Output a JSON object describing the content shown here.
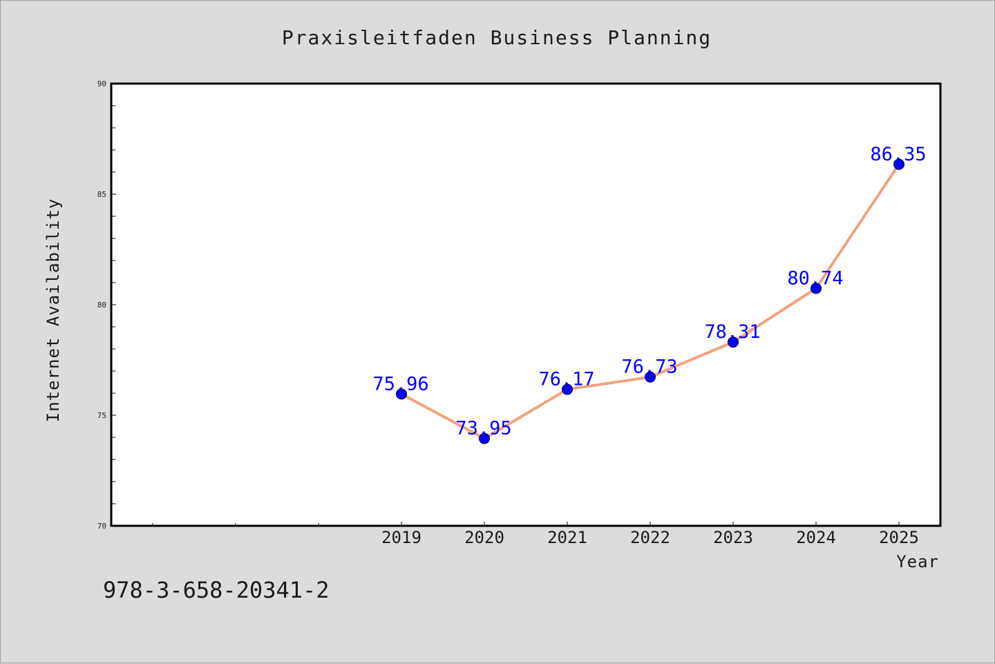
{
  "chart_data": {
    "type": "line",
    "title": "Praxisleitfaden Business Planning",
    "xlabel": "Year",
    "ylabel": "Internet Availability",
    "x": [
      2019,
      2020,
      2021,
      2022,
      2023,
      2024,
      2025
    ],
    "x_tick_labels": [
      "2019",
      "2020",
      "2021",
      "2022",
      "2023",
      "2024",
      "2025"
    ],
    "xlim": [
      2015.5,
      2025.5
    ],
    "series": [
      {
        "values": [
          75.96,
          73.95,
          76.17,
          76.73,
          78.31,
          80.74,
          86.35
        ],
        "data_labels": [
          "75.96",
          "73.95",
          "76.17",
          "76.73",
          "78.31",
          "80.74",
          "86.35"
        ]
      }
    ],
    "ylim": [
      70,
      90
    ],
    "y_ticks": [
      70,
      75,
      80,
      85,
      90
    ],
    "y_tick_labels": [
      "70",
      "75",
      "80",
      "85",
      "90"
    ],
    "grid": false,
    "line_color": "#f4a07f",
    "marker_color": "#0000ff",
    "label_color": "#0000ff",
    "background_color": "#dcdcdc",
    "plot_background_color": "#ffffff"
  },
  "footer": {
    "isbn": "978-3-658-20341-2"
  }
}
